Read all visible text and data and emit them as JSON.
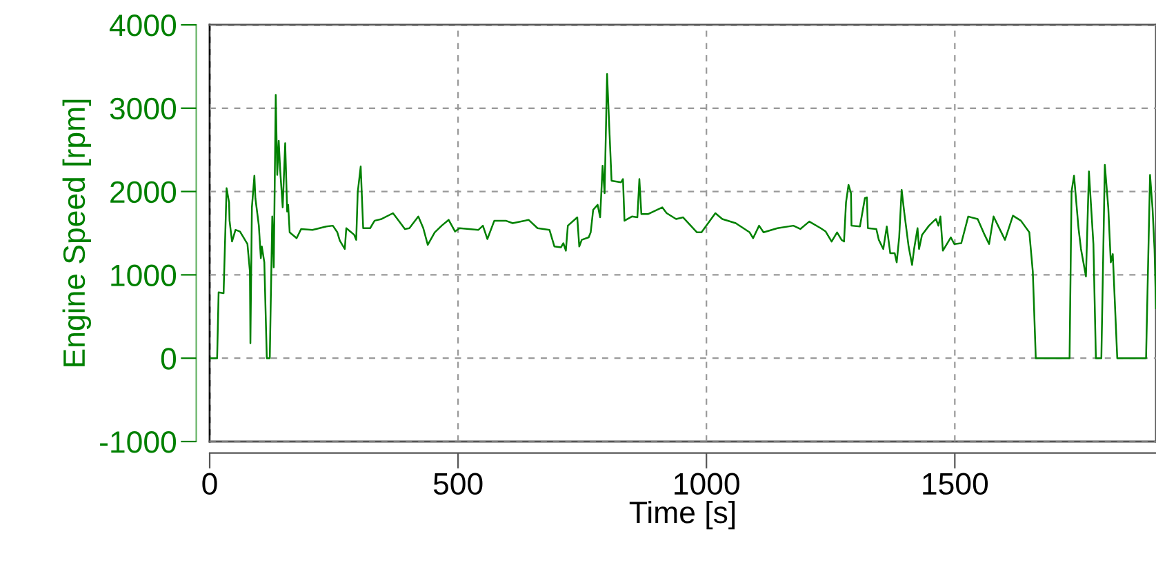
{
  "chart_data": {
    "type": "line",
    "xlabel": "Time [s]",
    "ylabel": "Engine Speed [rpm]",
    "xlim": [
      0,
      1905
    ],
    "xticks": [
      0,
      500,
      1000,
      1500
    ],
    "ylim": [
      -1000,
      4000
    ],
    "yticks": [
      -1000,
      0,
      1000,
      2000,
      3000,
      4000
    ],
    "grid": true,
    "marker": "none",
    "line_style": "solid",
    "series": [
      {
        "color": "#008000",
        "x": [
          0,
          15,
          18,
          28,
          34,
          39,
          40,
          45,
          52,
          61,
          76,
          81,
          82,
          85,
          90,
          92,
          99,
          103,
          105,
          110,
          115,
          121,
          126,
          129,
          133,
          136,
          139,
          142,
          147,
          152,
          156,
          158,
          161,
          175,
          184,
          207,
          235,
          248,
          257,
          262,
          272,
          275,
          291,
          295,
          298,
          304,
          309,
          323,
          332,
          346,
          369,
          378,
          393,
          402,
          420,
          430,
          439,
          453,
          467,
          481,
          494,
          503,
          541,
          550,
          559,
          573,
          596,
          610,
          642,
          660,
          684,
          694,
          707,
          712,
          717,
          721,
          740,
          744,
          749,
          763,
          767,
          772,
          781,
          786,
          791,
          795,
          800,
          805,
          809,
          828,
          832,
          835,
          850,
          861,
          865,
          869,
          883,
          911,
          920,
          939,
          953,
          981,
          990,
          1018,
          1032,
          1059,
          1087,
          1094,
          1106,
          1115,
          1143,
          1175,
          1189,
          1207,
          1230,
          1240,
          1252,
          1263,
          1272,
          1277,
          1281,
          1286,
          1291,
          1292,
          1309,
          1319,
          1323,
          1325,
          1342,
          1347,
          1356,
          1363,
          1370,
          1379,
          1383,
          1388,
          1393,
          1398,
          1407,
          1414,
          1418,
          1425,
          1428,
          1434,
          1448,
          1462,
          1467,
          1471,
          1476,
          1492,
          1499,
          1513,
          1527,
          1546,
          1560,
          1569,
          1578,
          1601,
          1617,
          1633,
          1650,
          1657,
          1663,
          1731,
          1735,
          1740,
          1749,
          1754,
          1764,
          1770,
          1779,
          1784,
          1795,
          1802,
          1809,
          1814,
          1818,
          1827,
          1885,
          1893,
          1898,
          1902,
          1905
        ],
        "values": [
          0,
          0,
          790,
          780,
          2040,
          1870,
          1650,
          1400,
          1540,
          1520,
          1370,
          1040,
          180,
          1810,
          2190,
          1920,
          1590,
          1200,
          1340,
          1150,
          0,
          0,
          1700,
          1090,
          3160,
          2200,
          2610,
          2250,
          1810,
          2580,
          1760,
          1840,
          1510,
          1440,
          1550,
          1540,
          1580,
          1590,
          1510,
          1410,
          1310,
          1560,
          1480,
          1420,
          1990,
          2300,
          1560,
          1560,
          1650,
          1670,
          1740,
          1670,
          1550,
          1560,
          1700,
          1560,
          1360,
          1510,
          1590,
          1660,
          1520,
          1560,
          1540,
          1590,
          1430,
          1650,
          1650,
          1620,
          1660,
          1560,
          1540,
          1340,
          1330,
          1380,
          1290,
          1590,
          1690,
          1340,
          1420,
          1450,
          1510,
          1780,
          1840,
          1690,
          2310,
          1980,
          3410,
          2690,
          2130,
          2110,
          2150,
          1650,
          1700,
          1690,
          2150,
          1730,
          1730,
          1810,
          1740,
          1670,
          1690,
          1510,
          1510,
          1740,
          1670,
          1620,
          1510,
          1440,
          1590,
          1510,
          1560,
          1590,
          1550,
          1640,
          1560,
          1520,
          1400,
          1510,
          1420,
          1400,
          1870,
          2080,
          1980,
          1590,
          1580,
          1920,
          1930,
          1560,
          1550,
          1420,
          1310,
          1580,
          1260,
          1260,
          1150,
          1450,
          2020,
          1760,
          1340,
          1120,
          1310,
          1560,
          1310,
          1480,
          1590,
          1670,
          1590,
          1700,
          1290,
          1450,
          1370,
          1380,
          1700,
          1670,
          1480,
          1370,
          1700,
          1420,
          1710,
          1650,
          1510,
          1040,
          0,
          0,
          2000,
          2190,
          1560,
          1310,
          980,
          2240,
          1370,
          0,
          0,
          2320,
          1800,
          1150,
          1250,
          0,
          0,
          2200,
          1800,
          1310,
          600
        ]
      }
    ]
  }
}
